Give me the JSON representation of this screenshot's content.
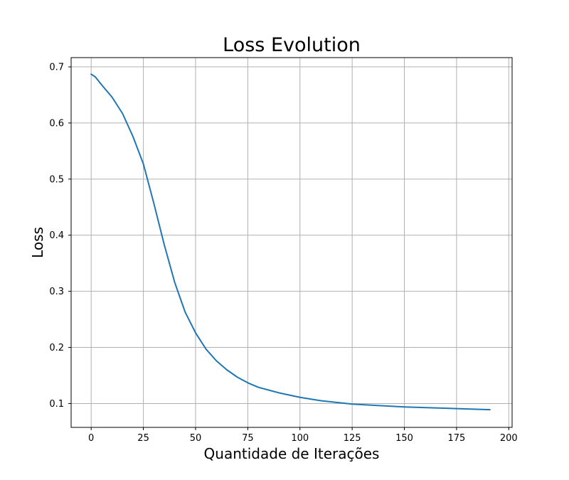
{
  "chart_data": {
    "type": "line",
    "title": "Loss Evolution",
    "xlabel": "Quantidade de Iterações",
    "ylabel": "Loss",
    "xlim": [
      -9.6,
      201.6
    ],
    "ylim": [
      0.0575,
      0.7165
    ],
    "xticks": [
      0,
      25,
      50,
      75,
      100,
      125,
      150,
      175,
      200
    ],
    "yticks": [
      0.1,
      0.2,
      0.3,
      0.4,
      0.5,
      0.6,
      0.7
    ],
    "xtick_labels": [
      "0",
      "25",
      "50",
      "75",
      "100",
      "125",
      "150",
      "175",
      "200"
    ],
    "ytick_labels": [
      "0.1",
      "0.2",
      "0.3",
      "0.4",
      "0.5",
      "0.6",
      "0.7"
    ],
    "grid": true,
    "series": [
      {
        "color": "#1f77b4",
        "x": [
          0,
          2,
          5,
          10,
          15,
          20,
          25,
          30,
          35,
          40,
          45,
          50,
          55,
          60,
          65,
          70,
          75,
          80,
          90,
          100,
          110,
          125,
          150,
          175,
          191
        ],
        "y": [
          0.687,
          0.682,
          0.668,
          0.646,
          0.617,
          0.576,
          0.527,
          0.457,
          0.383,
          0.316,
          0.263,
          0.226,
          0.197,
          0.176,
          0.16,
          0.147,
          0.137,
          0.129,
          0.119,
          0.111,
          0.105,
          0.099,
          0.094,
          0.091,
          0.089
        ]
      }
    ]
  }
}
